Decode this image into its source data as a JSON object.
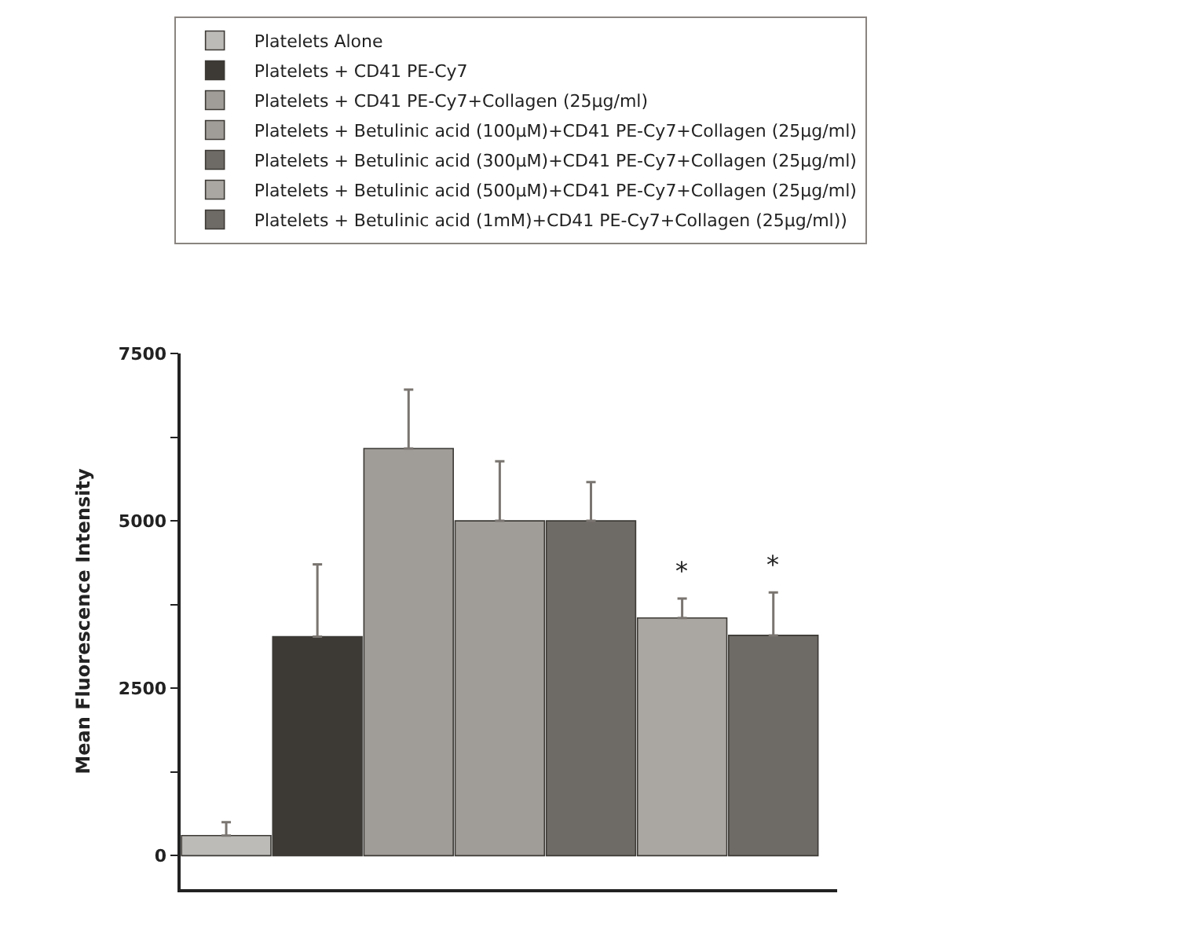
{
  "chart_data": {
    "type": "bar",
    "ylabel": "Mean Fluorescence Intensity",
    "categories": [
      null,
      null,
      null,
      null,
      null,
      null,
      null
    ],
    "series": [
      {
        "name": "Platelets Alone",
        "color": "#bdbbb8",
        "values": [
          300,
          null,
          null,
          null,
          null,
          null,
          null
        ],
        "errors": [
          [
            300,
            500
          ],
          null,
          null,
          null,
          null,
          null,
          null
        ]
      },
      {
        "name": "Platelets + CD41 PE-Cy7",
        "color": "#3d3a36",
        "values": [
          null,
          3270,
          null,
          null,
          null,
          null,
          null
        ],
        "errors": [
          null,
          [
            3270,
            4350
          ],
          null,
          null,
          null,
          null,
          null
        ]
      },
      {
        "name": "Platelets + CD41 PE-Cy7+Collagen (25µg/ml)",
        "color": "#a09c98",
        "values": [
          null,
          null,
          6080,
          null,
          null,
          null,
          null
        ],
        "errors": [
          null,
          null,
          [
            6080,
            6960
          ],
          null,
          null,
          null,
          null
        ]
      },
      {
        "name": "Platelets + Betulinic acid (100µM)+CD41 PE-Cy7+Collagen (25µg/ml)",
        "color": "#a09c98",
        "values": [
          null,
          null,
          null,
          5000,
          null,
          null,
          null
        ],
        "errors": [
          null,
          null,
          null,
          [
            5000,
            5890
          ],
          null,
          null,
          null
        ]
      },
      {
        "name": "Platelets + Betulinic acid (300µM)+CD41 PE-Cy7+Collagen (25µg/ml)",
        "color": "#6e6a66",
        "values": [
          null,
          null,
          null,
          null,
          5000,
          null,
          null
        ],
        "errors": [
          null,
          null,
          null,
          null,
          [
            5000,
            5580
          ],
          null,
          null
        ]
      },
      {
        "name": "Platelets + Betulinic acid (500µM)+CD41 PE-Cy7+Collagen (25µg/ml)",
        "color": "#aaa6a2",
        "values": [
          null,
          null,
          null,
          null,
          null,
          3550,
          null
        ],
        "errors": [
          null,
          null,
          null,
          null,
          null,
          [
            3550,
            3840
          ],
          null
        ]
      },
      {
        "name": "Platelets + Betulinic acid (1mM)+CD41 PE-Cy7+Collagen (25µg/ml))",
        "color": "#6e6a66",
        "values": [
          null,
          null,
          null,
          null,
          null,
          null,
          3290
        ],
        "errors": [
          null,
          null,
          null,
          null,
          null,
          null,
          [
            3290,
            3930
          ]
        ]
      }
    ],
    "annotations": [
      "*",
      "*"
    ],
    "ylim": [
      -500,
      7500
    ],
    "yticks": [
      0,
      {
        "value": 1250,
        "label": null
      },
      2500,
      {
        "value": 3750,
        "label": null
      },
      5000,
      {
        "value": 6250,
        "label": null
      },
      7500
    ],
    "legend": "top"
  }
}
